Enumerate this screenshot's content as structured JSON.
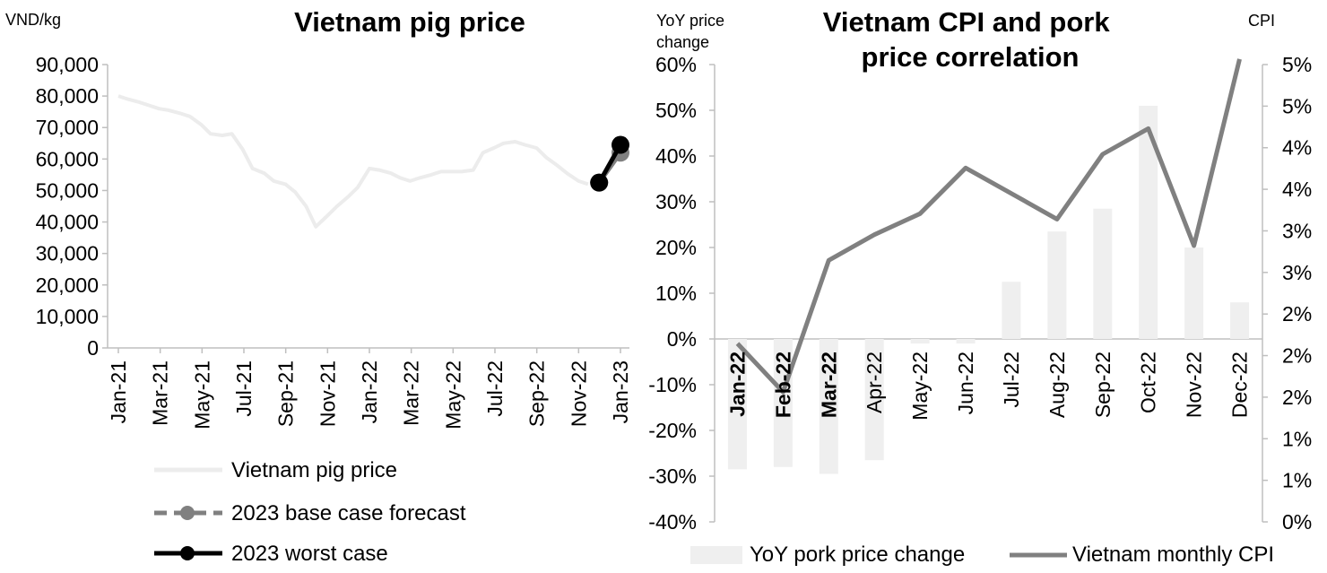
{
  "chart_data": [
    {
      "type": "line",
      "title": "Vietnam pig price",
      "y_unit_label": "VND/kg",
      "ylim": [
        0,
        90000
      ],
      "y_ticks": [
        "0",
        "10,000",
        "20,000",
        "30,000",
        "40,000",
        "50,000",
        "60,000",
        "70,000",
        "80,000",
        "90,000"
      ],
      "x_ticks": [
        "Jan-21",
        "Mar-21",
        "May-21",
        "Jul-21",
        "Sep-21",
        "Nov-21",
        "Jan-22",
        "Mar-22",
        "May-22",
        "Jul-22",
        "Sep-22",
        "Nov-22",
        "Jan-23"
      ],
      "grid": false,
      "legend_position": "bottom",
      "series": [
        {
          "name": "Vietnam pig price",
          "color": "#ececec",
          "points": [
            [
              "2021-01-01",
              80000
            ],
            [
              "2021-01-15",
              79000
            ],
            [
              "2021-02-01",
              78000
            ],
            [
              "2021-02-15",
              77000
            ],
            [
              "2021-03-01",
              76000
            ],
            [
              "2021-03-15",
              75500
            ],
            [
              "2021-04-01",
              74500
            ],
            [
              "2021-04-15",
              73500
            ],
            [
              "2021-05-01",
              71000
            ],
            [
              "2021-05-15",
              68000
            ],
            [
              "2021-06-01",
              67500
            ],
            [
              "2021-06-15",
              68000
            ],
            [
              "2021-07-01",
              63000
            ],
            [
              "2021-07-15",
              57000
            ],
            [
              "2021-08-01",
              55500
            ],
            [
              "2021-08-15",
              53000
            ],
            [
              "2021-09-01",
              52000
            ],
            [
              "2021-09-15",
              49500
            ],
            [
              "2021-10-01",
              45000
            ],
            [
              "2021-10-15",
              38500
            ],
            [
              "2021-11-01",
              42000
            ],
            [
              "2021-11-15",
              45000
            ],
            [
              "2021-12-01",
              48000
            ],
            [
              "2021-12-15",
              51000
            ],
            [
              "2022-01-01",
              57000
            ],
            [
              "2022-01-15",
              56500
            ],
            [
              "2022-02-01",
              55500
            ],
            [
              "2022-02-15",
              54000
            ],
            [
              "2022-03-01",
              53000
            ],
            [
              "2022-03-15",
              54000
            ],
            [
              "2022-04-01",
              55000
            ],
            [
              "2022-04-15",
              56000
            ],
            [
              "2022-05-01",
              56000
            ],
            [
              "2022-05-15",
              56000
            ],
            [
              "2022-06-01",
              56500
            ],
            [
              "2022-06-15",
              62000
            ],
            [
              "2022-07-01",
              63500
            ],
            [
              "2022-07-15",
              65000
            ],
            [
              "2022-08-01",
              65500
            ],
            [
              "2022-08-15",
              64500
            ],
            [
              "2022-09-01",
              63500
            ],
            [
              "2022-09-15",
              60500
            ],
            [
              "2022-10-01",
              58000
            ],
            [
              "2022-10-15",
              55500
            ],
            [
              "2022-11-01",
              53000
            ],
            [
              "2022-11-15",
              52000
            ]
          ]
        },
        {
          "name": "2023 base case forecast",
          "color": "#808080",
          "points": [
            [
              "2022-12-01",
              52500
            ],
            [
              "2023-01-01",
              62000
            ]
          ]
        },
        {
          "name": "2023 worst case",
          "color": "#000000",
          "points": [
            [
              "2022-12-01",
              52500
            ],
            [
              "2023-01-01",
              64500
            ]
          ]
        }
      ]
    },
    {
      "type": "bar",
      "title": "Vietnam CPI and pork price correlation",
      "y_left_unit_label": "YoY  price change",
      "y_right_unit_label": "CPI",
      "ylim_left": [
        -0.4,
        0.6
      ],
      "ylim_right": [
        0,
        5
      ],
      "y_left_ticks": [
        "-40%",
        "-30%",
        "-20%",
        "-10%",
        "0%",
        "10%",
        "20%",
        "30%",
        "40%",
        "50%",
        "60%"
      ],
      "y_right_ticks": [
        "0%",
        "1%",
        "1%",
        "2%",
        "2%",
        "2%",
        "3%",
        "3%",
        "4%",
        "4%",
        "5%",
        "5%"
      ],
      "categories": [
        "Jan-22",
        "Feb-22",
        "Mar-22",
        "Apr-22",
        "May-22",
        "Jun-22",
        "Jul-22",
        "Aug-22",
        "Sep-22",
        "Oct-22",
        "Nov-22",
        "Dec-22"
      ],
      "grid": false,
      "legend_position": "bottom",
      "series": [
        {
          "name": "YoY pork price change",
          "type": "bar",
          "axis": "left",
          "color": "#efefef",
          "values": [
            -0.285,
            -0.28,
            -0.295,
            -0.265,
            -0.01,
            -0.01,
            0.125,
            0.235,
            0.285,
            0.51,
            0.2,
            0.08
          ]
        },
        {
          "name": "Vietnam monthly CPI",
          "type": "line",
          "axis": "right",
          "color": "#808080",
          "values": [
            1.95,
            1.42,
            2.86,
            3.14,
            3.37,
            3.87,
            3.59,
            3.31,
            4.02,
            4.3,
            3.02,
            5.06
          ]
        }
      ]
    }
  ]
}
